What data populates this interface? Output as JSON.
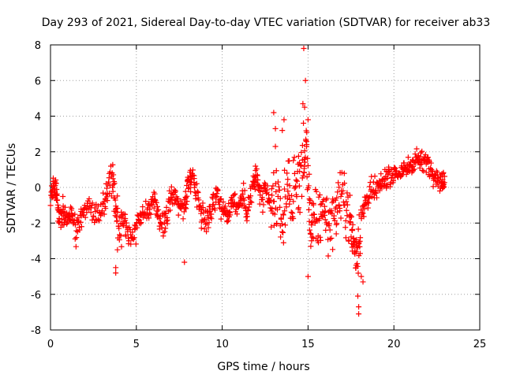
{
  "chart_data": {
    "type": "scatter",
    "title": "Day 293 of 2021, Sidereal Day-to-day VTEC variation (SDTVAR) for receiver ab33",
    "xlabel": "GPS time / hours",
    "ylabel": "SDTVAR / TECUs",
    "xlim": [
      0,
      25
    ],
    "ylim": [
      -8,
      8
    ],
    "xticks": [
      "0",
      "5",
      "10",
      "15",
      "20",
      "25"
    ],
    "yticks": [
      "-8",
      "-6",
      "-4",
      "-2",
      "0",
      "2",
      "4",
      "6",
      "8"
    ],
    "grid": true,
    "marker": "+",
    "color": "#ff0000",
    "series": [
      {
        "name": "SDTVAR",
        "trend": [
          [
            0.0,
            -0.5
          ],
          [
            0.2,
            0.1
          ],
          [
            0.35,
            -0.3
          ],
          [
            0.5,
            -1.8
          ],
          [
            0.7,
            -1.2
          ],
          [
            0.9,
            -1.6
          ],
          [
            1.2,
            -1.3
          ],
          [
            1.5,
            -2.6
          ],
          [
            1.8,
            -1.6
          ],
          [
            2.2,
            -1.0
          ],
          [
            2.6,
            -1.7
          ],
          [
            3.0,
            -1.2
          ],
          [
            3.3,
            -0.3
          ],
          [
            3.6,
            0.5
          ],
          [
            3.8,
            -1.0
          ],
          [
            4.0,
            -2.5
          ],
          [
            4.3,
            -1.6
          ],
          [
            4.6,
            -2.8
          ],
          [
            5.0,
            -2.3
          ],
          [
            5.3,
            -1.5
          ],
          [
            5.7,
            -1.2
          ],
          [
            6.0,
            -0.8
          ],
          [
            6.3,
            -1.5
          ],
          [
            6.6,
            -2.2
          ],
          [
            6.9,
            -1.2
          ],
          [
            7.2,
            -0.3
          ],
          [
            7.5,
            -1.0
          ],
          [
            7.8,
            -1.2
          ],
          [
            8.0,
            0.2
          ],
          [
            8.2,
            0.8
          ],
          [
            8.5,
            -0.2
          ],
          [
            8.8,
            -1.4
          ],
          [
            9.1,
            -2.0
          ],
          [
            9.4,
            -1.0
          ],
          [
            9.7,
            -0.3
          ],
          [
            10.0,
            -1.2
          ],
          [
            10.3,
            -1.6
          ],
          [
            10.6,
            -0.6
          ],
          [
            10.9,
            -1.0
          ],
          [
            11.2,
            -0.6
          ],
          [
            11.5,
            -1.4
          ],
          [
            11.8,
            0.3
          ],
          [
            12.0,
            0.6
          ],
          [
            12.3,
            -0.8
          ],
          [
            12.6,
            -0.3
          ],
          [
            12.9,
            -1.3
          ],
          [
            13.2,
            -0.6
          ],
          [
            13.5,
            -2.0
          ],
          [
            13.8,
            0.2
          ],
          [
            14.1,
            -0.8
          ],
          [
            14.4,
            0.6
          ],
          [
            14.7,
            1.0
          ],
          [
            14.9,
            2.5
          ],
          [
            15.1,
            -1.6
          ],
          [
            15.3,
            -2.4
          ],
          [
            15.6,
            -2.0
          ],
          [
            15.9,
            -1.0
          ],
          [
            16.2,
            -2.2
          ],
          [
            16.5,
            -1.5
          ],
          [
            16.8,
            -0.8
          ],
          [
            17.1,
            -0.6
          ],
          [
            17.4,
            -1.6
          ],
          [
            17.6,
            -2.8
          ],
          [
            17.8,
            -3.8
          ],
          [
            18.0,
            -2.5
          ],
          [
            18.3,
            -0.9
          ],
          [
            18.6,
            -0.4
          ],
          [
            18.9,
            -0.2
          ],
          [
            19.2,
            0.0
          ],
          [
            19.5,
            0.5
          ],
          [
            19.8,
            0.7
          ],
          [
            20.1,
            0.8
          ],
          [
            20.4,
            0.8
          ],
          [
            20.7,
            1.0
          ],
          [
            21.0,
            1.3
          ],
          [
            21.3,
            1.7
          ],
          [
            21.6,
            1.4
          ],
          [
            21.9,
            1.5
          ],
          [
            22.2,
            1.0
          ],
          [
            22.5,
            0.6
          ],
          [
            22.8,
            0.3
          ],
          [
            22.95,
            0.2
          ]
        ],
        "outliers": [
          [
            14.75,
            7.8
          ],
          [
            14.85,
            6.0
          ],
          [
            13.0,
            4.2
          ],
          [
            14.7,
            4.7
          ],
          [
            14.8,
            4.5
          ],
          [
            15.0,
            3.8
          ],
          [
            13.6,
            3.8
          ],
          [
            13.1,
            3.3
          ],
          [
            13.5,
            3.2
          ],
          [
            13.1,
            2.3
          ],
          [
            17.95,
            -6.7
          ],
          [
            17.95,
            -7.1
          ],
          [
            17.9,
            -6.1
          ],
          [
            3.8,
            -4.8
          ],
          [
            3.8,
            -4.5
          ],
          [
            3.9,
            -3.5
          ],
          [
            7.8,
            -4.2
          ],
          [
            15.0,
            -5.0
          ],
          [
            18.2,
            -5.3
          ],
          [
            18.1,
            -5.0
          ]
        ]
      }
    ]
  }
}
